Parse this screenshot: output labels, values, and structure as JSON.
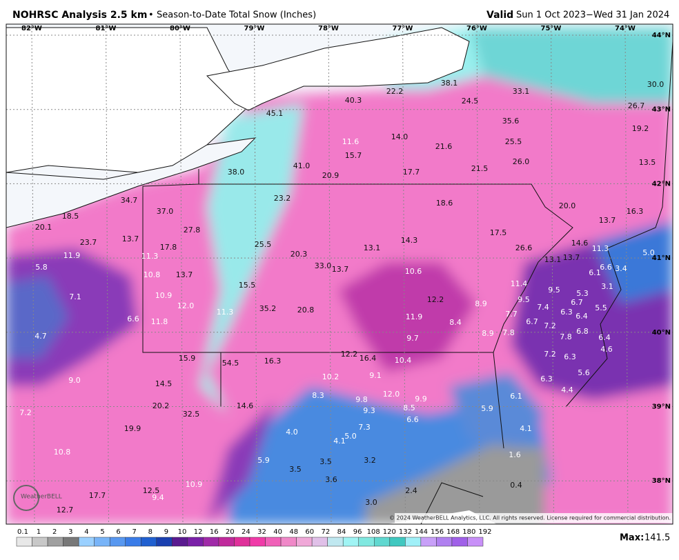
{
  "header": {
    "title": "NOHRSC Analysis 2.5 km",
    "separator": "•",
    "subtitle": "Season-to-Date Total Snow (Inches)",
    "valid_label": "Valid",
    "valid_range": "Sun 1 Oct 2023−Wed 31 Jan 2024"
  },
  "map": {
    "longitudes": [
      "82°W",
      "81°W",
      "80°W",
      "79°W",
      "78°W",
      "77°W",
      "76°W",
      "75°W",
      "74°W"
    ],
    "latitudes": [
      "44°N",
      "43°N",
      "42°N",
      "41°N",
      "40°N",
      "39°N",
      "38°N"
    ],
    "values": [
      "45.1",
      "40.3",
      "22.2",
      "38.1",
      "33.1",
      "30.0",
      "24.5",
      "26.7",
      "35.6",
      "19.2",
      "11.6",
      "14.0",
      "21.6",
      "25.5",
      "15.7",
      "26.0",
      "13.5",
      "38.0",
      "41.0",
      "20.9",
      "17.7",
      "21.5",
      "34.7",
      "23.2",
      "18.6",
      "20.0",
      "16.3",
      "37.0",
      "18.5",
      "20.1",
      "13.7",
      "27.8",
      "17.5",
      "13.7",
      "23.7",
      "25.5",
      "14.3",
      "14.6",
      "17.8",
      "13.1",
      "26.6",
      "11.3",
      "20.3",
      "11.9",
      "11.3",
      "5.0",
      "13.1",
      "13.7",
      "6.6",
      "33.0",
      "13.7",
      "3.4",
      "5.8",
      "10.8",
      "13.7",
      "10.6",
      "6.1",
      "11.4",
      "15.5",
      "3.1",
      "9.5",
      "5.3",
      "7.1",
      "10.9",
      "12.2",
      "9.5",
      "6.7",
      "8.9",
      "12.0",
      "35.2",
      "7.4",
      "5.5",
      "20.8",
      "11.3",
      "6.3",
      "6.4",
      "7.7",
      "11.9",
      "6.6",
      "6.7",
      "7.2",
      "11.8",
      "8.4",
      "4.7",
      "6.8",
      "7.8",
      "8.9",
      "7.8",
      "6.4",
      "9.7",
      "4.6",
      "15.9",
      "12.2",
      "16.4",
      "7.2",
      "6.3",
      "10.4",
      "54.5",
      "16.3",
      "10.2",
      "9.1",
      "5.6",
      "9.0",
      "6.3",
      "14.5",
      "4.4",
      "8.3",
      "12.0",
      "6.1",
      "9.8",
      "9.9",
      "20.2",
      "14.6",
      "8.5",
      "5.9",
      "9.3",
      "7.2",
      "32.5",
      "6.6",
      "4.0",
      "19.9",
      "7.3",
      "4.1",
      "5.0",
      "4.1",
      "10.8",
      "1.6",
      "5.9",
      "3.5",
      "3.2",
      "3.5",
      "3.6",
      "10.9",
      "0.4",
      "12.5",
      "2.4",
      "17.7",
      "9.4",
      "3.0",
      "12.7"
    ],
    "logo": "WeatherBELL",
    "copyright": "© 2024 WeatherBELL Analytics, LLC. All rights reserved. License required for commercial distribution."
  },
  "colorbar": {
    "ticks": [
      0.1,
      1,
      2,
      3,
      4,
      5,
      6,
      7,
      8,
      9,
      10,
      12,
      16,
      20,
      24,
      32,
      40,
      48,
      60,
      72,
      84,
      96,
      108,
      120,
      132,
      144,
      156,
      168,
      180,
      192
    ]
  },
  "max": {
    "label": "Max:",
    "value": 141.5
  }
}
